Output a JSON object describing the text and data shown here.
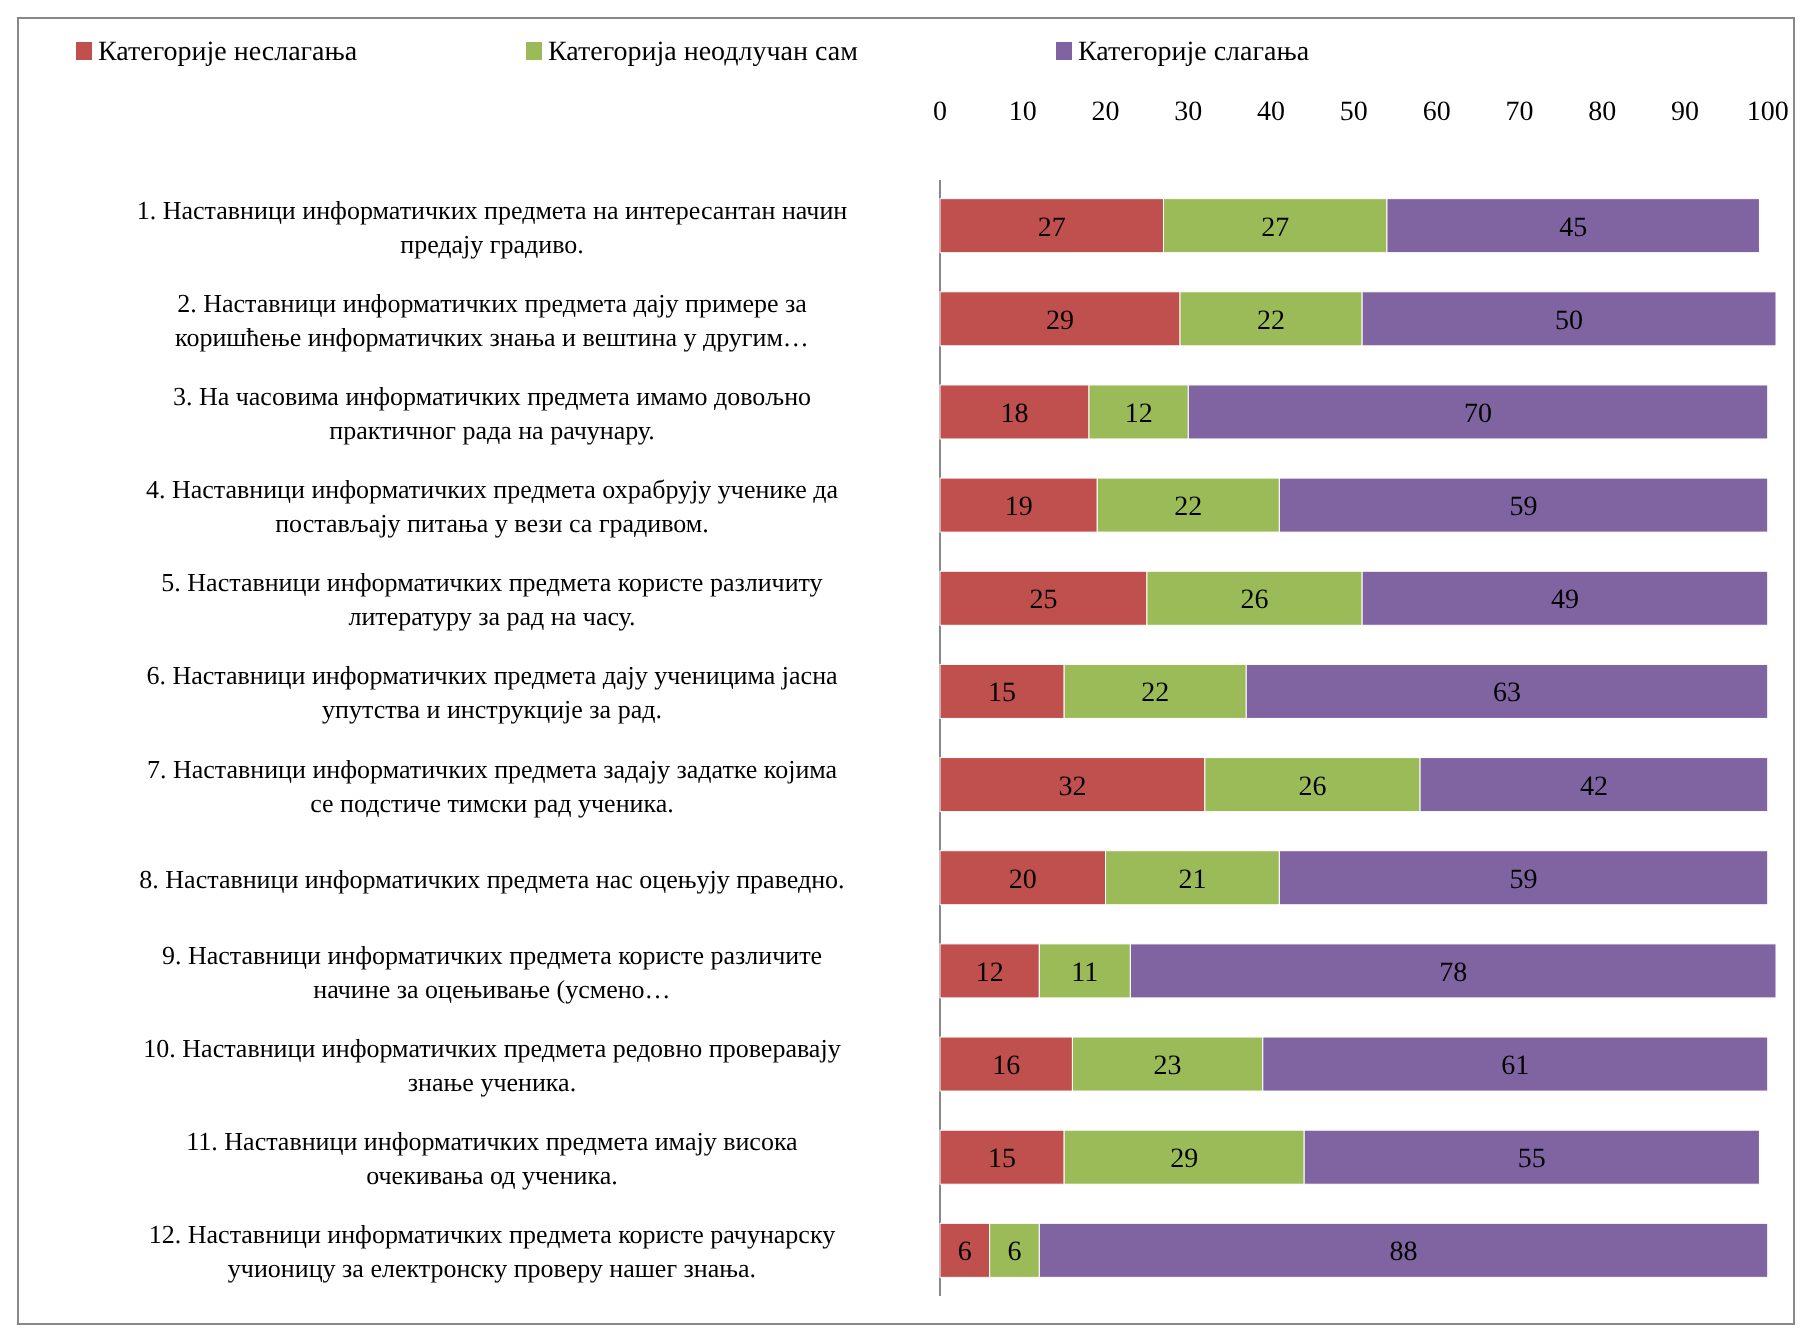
{
  "chart_data": {
    "type": "bar",
    "orientation": "horizontal",
    "stacked": true,
    "data_labels": true,
    "legend": "top",
    "grid": false,
    "categories": [
      "1. Наставници информатичких предмета на интересантан начин предају градиво.",
      "2. Наставници информатичких предмета дају примере за коришћење информатичких знања и вештина у другим…",
      "3. На часовима информатичких предмета имамо довољно практичног рада на рачунару.",
      "4. Наставници информатичких предмета охрабрују ученике да постављају питања у вези са градивом.",
      "5. Наставници информатичких предмета користе различиту литературу за рад на часу.",
      "6. Наставници информатичких предмета дају ученицима јасна упутства и инструкције за рад.",
      "7. Наставници информатичких предмета задају задатке којима се подстиче тимски рад ученика.",
      "8. Наставници информатичких предмета нас оцењују праведно.",
      "9. Наставници информатичких предмета користе различите начине за оцењивање (усмено…",
      "10. Наставници информатичких предмета редовно проверавају знање ученика.",
      "11. Наставници информатичких предмета имају висока очекивања од ученика.",
      "12. Наставници информатичких предмета користе рачунарску учионицу за електронску проверу нашег знања."
    ],
    "series": [
      {
        "name": "Категорије неслагања",
        "color": "#c0504d",
        "values": [
          27,
          29,
          18,
          19,
          25,
          15,
          32,
          20,
          12,
          16,
          15,
          6
        ]
      },
      {
        "name": "Категорија неодлучан сам",
        "color": "#9bbb59",
        "values": [
          27,
          22,
          12,
          22,
          26,
          22,
          26,
          21,
          11,
          23,
          29,
          6
        ]
      },
      {
        "name": "Категорије слагања",
        "color": "#8064a2",
        "values": [
          45,
          50,
          70,
          59,
          49,
          63,
          42,
          59,
          78,
          61,
          55,
          88
        ]
      }
    ],
    "xlim": [
      0,
      101
    ],
    "xticks": [
      0,
      10,
      20,
      30,
      40,
      50,
      60,
      70,
      80,
      90,
      100
    ]
  }
}
